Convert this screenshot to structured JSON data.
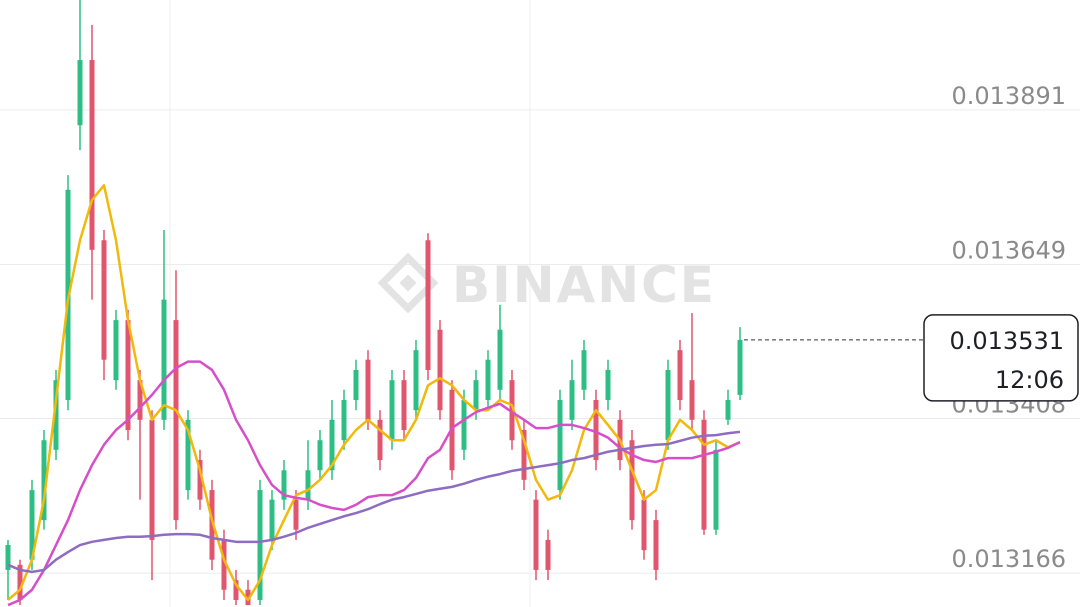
{
  "chart_data": {
    "type": "candlestick",
    "watermark": "BINANCE",
    "countdown": "12:06",
    "up_color": "#2ebd85",
    "down_color": "#e0566f",
    "grid": true,
    "ylim": [
      0.013113,
      0.014063
    ],
    "yticks": [
      0.013166,
      0.013408,
      0.013649,
      0.013891
    ],
    "open": [
      0.013171,
      0.013179,
      0.013187,
      0.013249,
      0.013359,
      0.013437,
      0.013867,
      0.013969,
      0.013687,
      0.013468,
      0.013562,
      0.013468,
      0.013406,
      0.013406,
      0.013562,
      0.013296,
      0.013343,
      0.013296,
      0.013218,
      0.013155,
      0.01314,
      0.013124,
      0.013218,
      0.013281,
      0.013281,
      0.013281,
      0.013327,
      0.013327,
      0.013374,
      0.013437,
      0.0135,
      0.013406,
      0.013374,
      0.013468,
      0.013421,
      0.013687,
      0.013547,
      0.013453,
      0.013359,
      0.013421,
      0.013437,
      0.013453,
      0.013468,
      0.01339,
      0.013281,
      0.013218,
      0.013296,
      0.013406,
      0.013453,
      0.013437,
      0.013437,
      0.013406,
      0.013374,
      0.013281,
      0.013249,
      0.013374,
      0.013515,
      0.013468,
      0.013406,
      0.013234,
      0.013406,
      0.013445
    ],
    "high": [
      0.013218,
      0.013187,
      0.013312,
      0.01339,
      0.013484,
      0.013789,
      0.014077,
      0.014024,
      0.013703,
      0.013578,
      0.013578,
      0.013484,
      0.013421,
      0.013703,
      0.01364,
      0.013421,
      0.013359,
      0.013312,
      0.013234,
      0.013171,
      0.013155,
      0.013312,
      0.013296,
      0.013343,
      0.013296,
      0.013374,
      0.01339,
      0.013437,
      0.013453,
      0.0135,
      0.013515,
      0.013421,
      0.013484,
      0.013484,
      0.013531,
      0.013698,
      0.013562,
      0.013468,
      0.013453,
      0.013484,
      0.013515,
      0.013586,
      0.013484,
      0.013406,
      0.013296,
      0.013234,
      0.013453,
      0.0135,
      0.013531,
      0.013453,
      0.0135,
      0.013421,
      0.01339,
      0.013296,
      0.013265,
      0.0135,
      0.013531,
      0.013573,
      0.013421,
      0.013374,
      0.013453,
      0.013551
    ],
    "low": [
      0.013124,
      0.013116,
      0.013171,
      0.013234,
      0.013343,
      0.013421,
      0.013828,
      0.013594,
      0.013468,
      0.013453,
      0.013374,
      0.013281,
      0.013155,
      0.01339,
      0.013234,
      0.013281,
      0.013265,
      0.013171,
      0.013124,
      0.013116,
      0.013116,
      0.013116,
      0.013202,
      0.013265,
      0.013218,
      0.013265,
      0.013312,
      0.013312,
      0.013359,
      0.013421,
      0.01339,
      0.013327,
      0.013359,
      0.013374,
      0.013406,
      0.013468,
      0.013406,
      0.013312,
      0.013343,
      0.013406,
      0.013421,
      0.013437,
      0.013359,
      0.013296,
      0.013155,
      0.013155,
      0.013281,
      0.01339,
      0.013437,
      0.013327,
      0.013421,
      0.013327,
      0.013234,
      0.013187,
      0.013155,
      0.013359,
      0.013421,
      0.01339,
      0.013226,
      0.013226,
      0.013398,
      0.013437
    ],
    "close": [
      0.01321,
      0.013124,
      0.013296,
      0.013374,
      0.013468,
      0.013766,
      0.013969,
      0.013672,
      0.0135,
      0.013562,
      0.01339,
      0.013406,
      0.013218,
      0.013594,
      0.013249,
      0.013406,
      0.013281,
      0.013187,
      0.01314,
      0.013124,
      0.013116,
      0.013296,
      0.013281,
      0.013327,
      0.013234,
      0.013327,
      0.013374,
      0.013406,
      0.013437,
      0.013484,
      0.013406,
      0.013343,
      0.013468,
      0.01339,
      0.013515,
      0.013484,
      0.013421,
      0.013327,
      0.013437,
      0.013468,
      0.0135,
      0.013547,
      0.013374,
      0.013312,
      0.013171,
      0.013171,
      0.013437,
      0.013468,
      0.013515,
      0.013343,
      0.013484,
      0.013343,
      0.013249,
      0.013202,
      0.013171,
      0.013484,
      0.013437,
      0.013406,
      0.013234,
      0.013359,
      0.013437,
      0.013531
    ],
    "lines": [
      {
        "color": "#f0b90b",
        "values": [
          0.013124,
          0.01314,
          0.013187,
          0.013281,
          0.013437,
          0.013594,
          0.013687,
          0.01375,
          0.013773,
          0.013687,
          0.013562,
          0.013468,
          0.013406,
          0.013429,
          0.013421,
          0.01339,
          0.013327,
          0.013249,
          0.013187,
          0.013148,
          0.013124,
          0.013155,
          0.01321,
          0.013249,
          0.013288,
          0.013296,
          0.013312,
          0.013335,
          0.013367,
          0.01339,
          0.013406,
          0.01339,
          0.013374,
          0.013374,
          0.013406,
          0.01346,
          0.013471,
          0.01346,
          0.013437,
          0.013421,
          0.013421,
          0.013437,
          0.013429,
          0.013374,
          0.013312,
          0.013281,
          0.013288,
          0.013327,
          0.01339,
          0.013421,
          0.013398,
          0.013374,
          0.013327,
          0.013281,
          0.013296,
          0.013374,
          0.013406,
          0.01339,
          0.013367,
          0.013374,
          0.013363,
          0.013371
        ]
      },
      {
        "color": "#d64fc9",
        "values": [
          0.013116,
          0.013124,
          0.01314,
          0.013171,
          0.01321,
          0.013249,
          0.013296,
          0.013335,
          0.013367,
          0.01339,
          0.013406,
          0.013425,
          0.013445,
          0.013468,
          0.013487,
          0.013497,
          0.013497,
          0.013484,
          0.013453,
          0.013406,
          0.013374,
          0.013335,
          0.013304,
          0.013288,
          0.013284,
          0.013281,
          0.013273,
          0.013268,
          0.013265,
          0.013273,
          0.013285,
          0.013288,
          0.013288,
          0.013296,
          0.013315,
          0.013346,
          0.013359,
          0.013393,
          0.013406,
          0.013418,
          0.013425,
          0.013431,
          0.013418,
          0.013406,
          0.013393,
          0.013393,
          0.013398,
          0.013398,
          0.013393,
          0.013387,
          0.013378,
          0.013362,
          0.013351,
          0.013343,
          0.01334,
          0.013346,
          0.013346,
          0.013346,
          0.013351,
          0.013356,
          0.013362,
          0.013371
        ]
      },
      {
        "color": "#8e6cc2",
        "values": [
          0.013179,
          0.013171,
          0.013168,
          0.013171,
          0.013187,
          0.013199,
          0.01321,
          0.013215,
          0.013218,
          0.013221,
          0.013223,
          0.013223,
          0.013224,
          0.013226,
          0.013227,
          0.013227,
          0.013226,
          0.013221,
          0.013218,
          0.013215,
          0.013215,
          0.013215,
          0.013218,
          0.013223,
          0.013229,
          0.013237,
          0.013243,
          0.013249,
          0.013255,
          0.01326,
          0.013266,
          0.013274,
          0.013281,
          0.013285,
          0.01329,
          0.013295,
          0.013298,
          0.013301,
          0.013306,
          0.013312,
          0.013317,
          0.013321,
          0.013326,
          0.013329,
          0.013332,
          0.013335,
          0.013338,
          0.013343,
          0.013346,
          0.013351,
          0.013356,
          0.013359,
          0.013362,
          0.013365,
          0.013367,
          0.013368,
          0.013373,
          0.013378,
          0.013381,
          0.013382,
          0.013385,
          0.013387
        ]
      }
    ]
  }
}
